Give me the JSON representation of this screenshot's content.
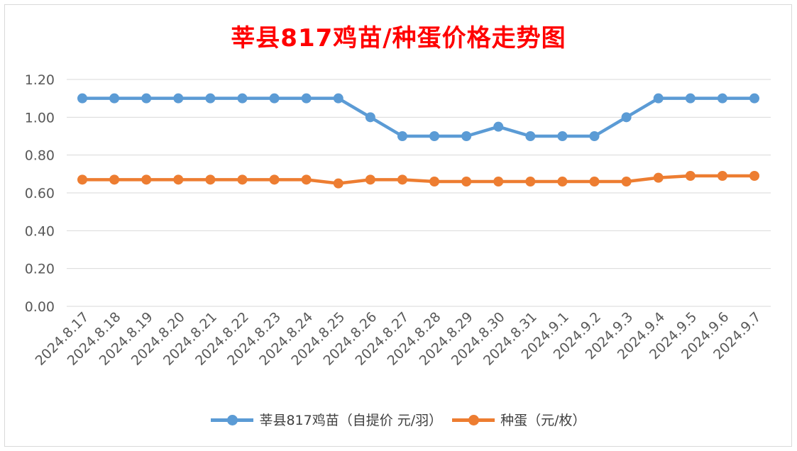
{
  "title": "莘县817鸡苗/种蛋价格走势图",
  "chart_data": {
    "type": "line",
    "title": "莘县817鸡苗/种蛋价格走势图",
    "categories": [
      "2024.8.17",
      "2024.8.18",
      "2024.8.19",
      "2024.8.20",
      "2024.8.21",
      "2024.8.22",
      "2024.8.23",
      "2024.8.24",
      "2024.8.25",
      "2024.8.26",
      "2024.8.27",
      "2024.8.28",
      "2024.8.29",
      "2024.8.30",
      "2024.8.31",
      "2024.9.1",
      "2024.9.2",
      "2024.9.3",
      "2024.9.4",
      "2024.9.5",
      "2024.9.6",
      "2024.9.7"
    ],
    "y_ticks": [
      "0.00",
      "0.20",
      "0.40",
      "0.60",
      "0.80",
      "1.00",
      "1.20"
    ],
    "ylim": [
      0,
      1.2
    ],
    "grid": true,
    "legend_position": "bottom",
    "series": [
      {
        "name": "莘县817鸡苗（自提价 元/羽）",
        "color": "#5b9bd5",
        "values": [
          1.1,
          1.1,
          1.1,
          1.1,
          1.1,
          1.1,
          1.1,
          1.1,
          1.1,
          1.0,
          0.9,
          0.9,
          0.9,
          0.95,
          0.9,
          0.9,
          0.9,
          1.0,
          1.1,
          1.1,
          1.1,
          1.1
        ]
      },
      {
        "name": "种蛋（元/枚）",
        "color": "#ed7d31",
        "values": [
          0.67,
          0.67,
          0.67,
          0.67,
          0.67,
          0.67,
          0.67,
          0.67,
          0.65,
          0.67,
          0.67,
          0.66,
          0.66,
          0.66,
          0.66,
          0.66,
          0.66,
          0.66,
          0.68,
          0.69,
          0.69,
          0.69
        ]
      }
    ]
  }
}
